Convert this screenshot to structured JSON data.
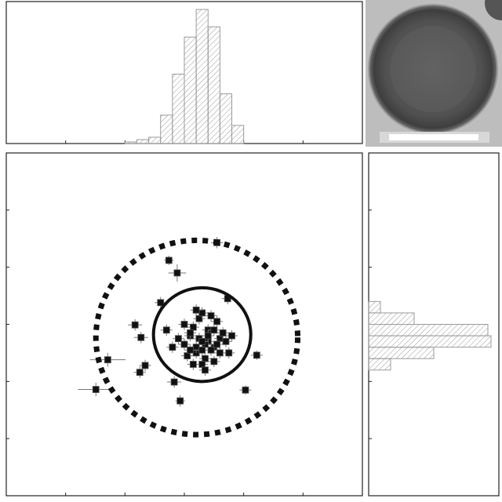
{
  "chart_data": [
    {
      "type": "histogram",
      "orientation": "vertical",
      "bins": [
        -1.0,
        -0.8,
        -0.6,
        -0.4,
        -0.2,
        0.0,
        0.2,
        0.4,
        0.6,
        0.8,
        1.0
      ],
      "values": [
        2,
        5,
        8,
        36,
        88,
        135,
        170,
        148,
        63,
        23
      ],
      "xlim": [
        -3,
        3
      ],
      "xticks": [
        -2,
        -1,
        0,
        1,
        2
      ],
      "ylim": [
        0,
        180
      ],
      "color": "#9a9a9a"
    },
    {
      "type": "scatter",
      "x": [
        0.3,
        0.1,
        0.5,
        0.2,
        0.4,
        0.0,
        0.6,
        0.35,
        0.15,
        0.45,
        0.25,
        -0.1,
        0.7,
        0.3,
        0.55,
        0.05,
        0.4,
        0.2,
        0.65,
        0.3,
        -0.2,
        0.5,
        0.1,
        0.35,
        0.8,
        0.25,
        0.45,
        0.0,
        0.6,
        0.15,
        0.3,
        0.4,
        -0.3,
        0.5,
        0.2,
        0.75,
        0.35,
        0.1,
        0.55,
        0.3,
        0.55,
        -0.26,
        -0.12,
        -1.49,
        -1.29,
        -0.83,
        -0.73,
        -0.66,
        -0.75,
        -0.17,
        -0.07,
        1.03,
        1.22,
        -0.4,
        0.73
      ],
      "y": [
        -0.3,
        -0.2,
        -0.4,
        -0.5,
        -0.1,
        -0.35,
        -0.25,
        -0.6,
        -0.05,
        -0.45,
        0.1,
        -0.25,
        -0.3,
        -0.7,
        0.05,
        -0.55,
        -0.3,
        -0.4,
        -0.15,
        0.2,
        -0.4,
        -0.65,
        -0.15,
        -0.35,
        -0.2,
        -0.25,
        0.15,
        0.0,
        -0.5,
        -0.7,
        -0.45,
        -0.2,
        -0.1,
        -0.1,
        0.25,
        -0.5,
        -0.8,
        -0.45,
        -0.35,
        -0.3,
        1.43,
        1.12,
        0.9,
        -1.14,
        -0.62,
        -0.01,
        -0.23,
        -0.72,
        -0.84,
        -1.01,
        -1.34,
        -1.15,
        -0.54,
        0.38,
        0.45
      ],
      "xerr": [
        0.1,
        0.1,
        0.1,
        0.1,
        0.1,
        0.1,
        0.1,
        0.1,
        0.1,
        0.1,
        0.1,
        0.1,
        0.1,
        0.1,
        0.1,
        0.1,
        0.1,
        0.1,
        0.1,
        0.1,
        0.1,
        0.1,
        0.1,
        0.1,
        0.1,
        0.1,
        0.1,
        0.1,
        0.1,
        0.1,
        0.1,
        0.1,
        0.1,
        0.1,
        0.1,
        0.1,
        0.1,
        0.1,
        0.1,
        0.1,
        0.1,
        0.08,
        0.15,
        0.3,
        0.3,
        0.12,
        0.12,
        0.1,
        0.1,
        0.12,
        0.08,
        0.1,
        0.1,
        0.1,
        0.1
      ],
      "yerr": [
        0.1,
        0.1,
        0.1,
        0.1,
        0.1,
        0.1,
        0.1,
        0.1,
        0.1,
        0.1,
        0.1,
        0.1,
        0.1,
        0.1,
        0.1,
        0.1,
        0.1,
        0.1,
        0.1,
        0.1,
        0.1,
        0.1,
        0.1,
        0.1,
        0.1,
        0.1,
        0.1,
        0.1,
        0.1,
        0.1,
        0.1,
        0.1,
        0.1,
        0.1,
        0.1,
        0.1,
        0.1,
        0.1,
        0.1,
        0.1,
        0.1,
        0.08,
        0.15,
        0.12,
        0.12,
        0.1,
        0.1,
        0.1,
        0.1,
        0.1,
        0.1,
        0.08,
        0.08,
        0.1,
        0.1
      ],
      "circles": [
        {
          "cx": 0.21,
          "cy": -0.23,
          "r": 1.7,
          "style": "dashed"
        },
        {
          "cx": 0.3,
          "cy": -0.18,
          "r": 0.82,
          "style": "solid"
        }
      ],
      "xlim": [
        -3,
        3
      ],
      "xticks": [
        -2,
        -1,
        0,
        1,
        2
      ],
      "ylim": [
        -3,
        3
      ],
      "yticks": [
        -2,
        -1,
        0,
        1,
        2
      ],
      "color": "#111111"
    },
    {
      "type": "histogram",
      "orientation": "horizontal",
      "bins": [
        -0.8,
        -0.6,
        -0.4,
        -0.2,
        0.0,
        0.2,
        0.4
      ],
      "values": [
        28,
        83,
        156,
        152,
        58,
        15
      ],
      "ylim": [
        -3,
        3
      ],
      "yticks": [
        -2,
        -1,
        0,
        1,
        2
      ],
      "xlim": [
        0,
        166
      ],
      "color": "#9a9a9a"
    }
  ]
}
